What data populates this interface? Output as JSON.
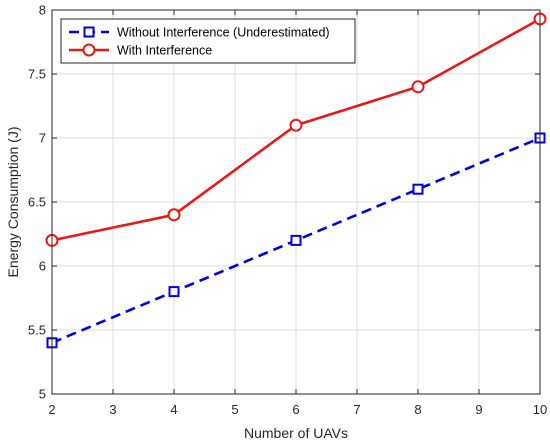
{
  "chart_data": {
    "type": "line",
    "title": "",
    "xlabel": "Number of UAVs",
    "ylabel": "Energy Consumption (J)",
    "xlim": [
      2,
      10
    ],
    "ylim": [
      5,
      8
    ],
    "xticks": [
      "2",
      "3",
      "4",
      "5",
      "6",
      "7",
      "8",
      "9",
      "10"
    ],
    "yticks": [
      "5",
      "5.5",
      "6",
      "6.5",
      "7",
      "7.5",
      "8"
    ],
    "grid": true,
    "legend_position": "top-left",
    "x": [
      2,
      4,
      6,
      8,
      10
    ],
    "series": [
      {
        "name": "Without Interference (Underestimated)",
        "values": [
          5.4,
          5.8,
          6.2,
          6.6,
          7.0
        ],
        "color": "#0000dd",
        "line_style": "dashed",
        "marker": "square"
      },
      {
        "name": "With Interference",
        "values": [
          6.2,
          6.4,
          7.1,
          7.4,
          7.93
        ],
        "color": "#e61919",
        "line_style": "solid",
        "marker": "circle"
      }
    ]
  }
}
